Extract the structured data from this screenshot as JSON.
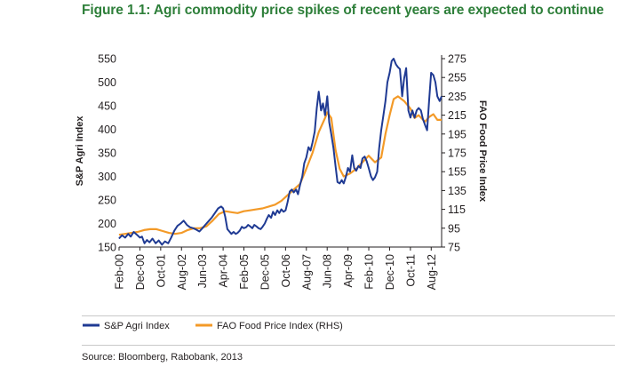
{
  "figure": {
    "title": "Figure 1.1: Agri commodity price spikes of recent years are expected to continue",
    "source": "Source: Bloomberg, Rabobank, 2013"
  },
  "chart_data": {
    "type": "line",
    "title": "Figure 1.1: Agri commodity price spikes of recent years are expected to continue",
    "ylabel_left": "S&P Agri Index",
    "ylabel_right": "FAO Food Price Index",
    "ylim_left": [
      150,
      550
    ],
    "yticks_left": [
      150,
      200,
      250,
      300,
      350,
      400,
      450,
      500,
      550
    ],
    "ylim_right": [
      75,
      275
    ],
    "yticks_right": [
      75,
      95,
      115,
      135,
      155,
      175,
      195,
      215,
      235,
      255,
      275
    ],
    "x_range": [
      2000.083,
      2013.0
    ],
    "xticks": [
      {
        "label": "Feb-00",
        "t": 2000.083
      },
      {
        "label": "Dec-00",
        "t": 2000.917
      },
      {
        "label": "Oct-01",
        "t": 2001.75
      },
      {
        "label": "Aug-02",
        "t": 2002.583
      },
      {
        "label": "Jun-03",
        "t": 2003.417
      },
      {
        "label": "Apr-04",
        "t": 2004.25
      },
      {
        "label": "Feb-05",
        "t": 2005.083
      },
      {
        "label": "Dec-05",
        "t": 2005.917
      },
      {
        "label": "Oct-06",
        "t": 2006.75
      },
      {
        "label": "Aug-07",
        "t": 2007.583
      },
      {
        "label": "Jun-08",
        "t": 2008.417
      },
      {
        "label": "Apr-09",
        "t": 2009.25
      },
      {
        "label": "Feb-10",
        "t": 2010.083
      },
      {
        "label": "Dec-10",
        "t": 2010.917
      },
      {
        "label": "Oct-11",
        "t": 2011.75
      },
      {
        "label": "Aug-12",
        "t": 2012.583
      }
    ],
    "series": [
      {
        "name": "S&P Agri Index",
        "axis": "left",
        "color": "#1f3a93",
        "points": [
          [
            2000.08,
            168
          ],
          [
            2000.2,
            175
          ],
          [
            2000.33,
            170
          ],
          [
            2000.45,
            178
          ],
          [
            2000.55,
            172
          ],
          [
            2000.67,
            182
          ],
          [
            2000.8,
            176
          ],
          [
            2000.92,
            170
          ],
          [
            2001.0,
            172
          ],
          [
            2001.1,
            158
          ],
          [
            2001.2,
            165
          ],
          [
            2001.3,
            160
          ],
          [
            2001.42,
            168
          ],
          [
            2001.55,
            158
          ],
          [
            2001.67,
            164
          ],
          [
            2001.8,
            155
          ],
          [
            2001.92,
            162
          ],
          [
            2002.05,
            158
          ],
          [
            2002.17,
            170
          ],
          [
            2002.3,
            185
          ],
          [
            2002.42,
            195
          ],
          [
            2002.55,
            200
          ],
          [
            2002.67,
            206
          ],
          [
            2002.8,
            197
          ],
          [
            2002.92,
            192
          ],
          [
            2003.05,
            190
          ],
          [
            2003.17,
            187
          ],
          [
            2003.3,
            183
          ],
          [
            2003.42,
            190
          ],
          [
            2003.55,
            198
          ],
          [
            2003.67,
            205
          ],
          [
            2003.8,
            213
          ],
          [
            2003.92,
            222
          ],
          [
            2004.05,
            232
          ],
          [
            2004.17,
            236
          ],
          [
            2004.25,
            232
          ],
          [
            2004.33,
            215
          ],
          [
            2004.42,
            188
          ],
          [
            2004.5,
            183
          ],
          [
            2004.58,
            178
          ],
          [
            2004.67,
            182
          ],
          [
            2004.75,
            178
          ],
          [
            2004.83,
            180
          ],
          [
            2004.92,
            185
          ],
          [
            2005.0,
            193
          ],
          [
            2005.08,
            190
          ],
          [
            2005.17,
            192
          ],
          [
            2005.25,
            197
          ],
          [
            2005.33,
            194
          ],
          [
            2005.42,
            190
          ],
          [
            2005.5,
            197
          ],
          [
            2005.58,
            194
          ],
          [
            2005.67,
            190
          ],
          [
            2005.75,
            188
          ],
          [
            2005.83,
            193
          ],
          [
            2005.92,
            200
          ],
          [
            2006.0,
            210
          ],
          [
            2006.08,
            218
          ],
          [
            2006.17,
            212
          ],
          [
            2006.25,
            225
          ],
          [
            2006.33,
            218
          ],
          [
            2006.42,
            228
          ],
          [
            2006.5,
            222
          ],
          [
            2006.58,
            230
          ],
          [
            2006.67,
            225
          ],
          [
            2006.75,
            228
          ],
          [
            2006.83,
            245
          ],
          [
            2006.92,
            268
          ],
          [
            2007.0,
            272
          ],
          [
            2007.08,
            266
          ],
          [
            2007.17,
            272
          ],
          [
            2007.25,
            262
          ],
          [
            2007.33,
            282
          ],
          [
            2007.42,
            300
          ],
          [
            2007.5,
            328
          ],
          [
            2007.58,
            340
          ],
          [
            2007.67,
            362
          ],
          [
            2007.75,
            355
          ],
          [
            2007.83,
            372
          ],
          [
            2007.92,
            395
          ],
          [
            2008.0,
            445
          ],
          [
            2008.08,
            480
          ],
          [
            2008.17,
            440
          ],
          [
            2008.25,
            455
          ],
          [
            2008.33,
            430
          ],
          [
            2008.42,
            470
          ],
          [
            2008.5,
            415
          ],
          [
            2008.58,
            390
          ],
          [
            2008.67,
            360
          ],
          [
            2008.75,
            322
          ],
          [
            2008.83,
            288
          ],
          [
            2008.92,
            285
          ],
          [
            2009.0,
            292
          ],
          [
            2009.08,
            285
          ],
          [
            2009.17,
            300
          ],
          [
            2009.25,
            318
          ],
          [
            2009.33,
            310
          ],
          [
            2009.42,
            345
          ],
          [
            2009.5,
            318
          ],
          [
            2009.58,
            312
          ],
          [
            2009.67,
            322
          ],
          [
            2009.75,
            318
          ],
          [
            2009.83,
            338
          ],
          [
            2009.92,
            342
          ],
          [
            2010.0,
            332
          ],
          [
            2010.08,
            318
          ],
          [
            2010.17,
            300
          ],
          [
            2010.25,
            292
          ],
          [
            2010.33,
            298
          ],
          [
            2010.42,
            310
          ],
          [
            2010.5,
            360
          ],
          [
            2010.58,
            398
          ],
          [
            2010.67,
            430
          ],
          [
            2010.75,
            460
          ],
          [
            2010.83,
            500
          ],
          [
            2010.92,
            520
          ],
          [
            2011.0,
            545
          ],
          [
            2011.08,
            550
          ],
          [
            2011.17,
            538
          ],
          [
            2011.25,
            532
          ],
          [
            2011.33,
            528
          ],
          [
            2011.42,
            470
          ],
          [
            2011.5,
            508
          ],
          [
            2011.58,
            530
          ],
          [
            2011.67,
            440
          ],
          [
            2011.75,
            425
          ],
          [
            2011.83,
            440
          ],
          [
            2011.92,
            425
          ],
          [
            2012.0,
            440
          ],
          [
            2012.08,
            445
          ],
          [
            2012.17,
            440
          ],
          [
            2012.25,
            422
          ],
          [
            2012.33,
            410
          ],
          [
            2012.42,
            398
          ],
          [
            2012.5,
            460
          ],
          [
            2012.58,
            520
          ],
          [
            2012.67,
            515
          ],
          [
            2012.75,
            500
          ],
          [
            2012.83,
            470
          ],
          [
            2012.92,
            460
          ],
          [
            2013.0,
            470
          ]
        ]
      },
      {
        "name": "FAO Food Price Index (RHS)",
        "axis": "right",
        "color": "#f39a28",
        "points": [
          [
            2000.08,
            88
          ],
          [
            2000.33,
            89
          ],
          [
            2000.58,
            90
          ],
          [
            2000.83,
            91
          ],
          [
            2001.08,
            93
          ],
          [
            2001.33,
            94
          ],
          [
            2001.58,
            94
          ],
          [
            2001.83,
            92
          ],
          [
            2002.08,
            90
          ],
          [
            2002.33,
            89
          ],
          [
            2002.58,
            90
          ],
          [
            2002.83,
            93
          ],
          [
            2003.08,
            95
          ],
          [
            2003.33,
            95
          ],
          [
            2003.58,
            97
          ],
          [
            2003.83,
            103
          ],
          [
            2004.08,
            110
          ],
          [
            2004.33,
            113
          ],
          [
            2004.58,
            112
          ],
          [
            2004.83,
            111
          ],
          [
            2005.08,
            113
          ],
          [
            2005.33,
            114
          ],
          [
            2005.58,
            115
          ],
          [
            2005.83,
            116
          ],
          [
            2006.08,
            118
          ],
          [
            2006.33,
            120
          ],
          [
            2006.58,
            124
          ],
          [
            2006.83,
            130
          ],
          [
            2007.08,
            136
          ],
          [
            2007.33,
            142
          ],
          [
            2007.58,
            158
          ],
          [
            2007.83,
            175
          ],
          [
            2008.08,
            197
          ],
          [
            2008.33,
            212
          ],
          [
            2008.42,
            218
          ],
          [
            2008.58,
            212
          ],
          [
            2008.75,
            178
          ],
          [
            2008.92,
            158
          ],
          [
            2009.08,
            150
          ],
          [
            2009.33,
            153
          ],
          [
            2009.58,
            158
          ],
          [
            2009.83,
            165
          ],
          [
            2010.08,
            172
          ],
          [
            2010.33,
            165
          ],
          [
            2010.58,
            170
          ],
          [
            2010.75,
            195
          ],
          [
            2010.92,
            215
          ],
          [
            2011.08,
            232
          ],
          [
            2011.25,
            235
          ],
          [
            2011.5,
            230
          ],
          [
            2011.75,
            222
          ],
          [
            2011.92,
            212
          ],
          [
            2012.08,
            215
          ],
          [
            2012.33,
            208
          ],
          [
            2012.5,
            213
          ],
          [
            2012.67,
            216
          ],
          [
            2012.83,
            210
          ],
          [
            2013.0,
            210
          ]
        ]
      }
    ],
    "legend": [
      "S&P Agri Index",
      "FAO Food Price Index (RHS)"
    ]
  }
}
